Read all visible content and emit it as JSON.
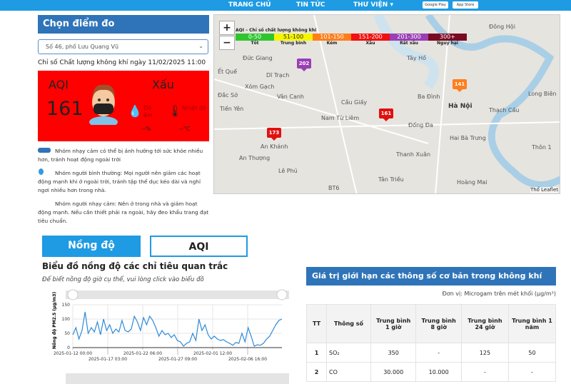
{
  "nav": {
    "items": [
      "TRANG CHỦ",
      "TIN TỨC",
      "THƯ VIỆN ▾"
    ],
    "stores": [
      "Google Play",
      "App Store"
    ]
  },
  "sidebar": {
    "title": "Chọn điểm đo",
    "station": "Số 46, phố Lưu Quang Vũ",
    "date_label": "Chỉ số Chất lượng không khí ngày 11/02/2025 11:00",
    "aqi_label": "AQI",
    "aqi_value": "161",
    "status": "Xấu",
    "humidity_label": "Độ ẩm",
    "humidity_value": "--%",
    "temp_label": "Nhiệt độ",
    "temp_value": "--°C",
    "box_color": "#ff0000",
    "advice": [
      "Nhóm nhạy cảm có thể bị ảnh hưởng tới sức khỏe nhiều hơn, tránh hoạt động ngoài trời",
      "Nhóm người bình thường: Mọi người nên giảm các hoạt động mạnh khi ở ngoài trời, tránh tập thể dục kéo dài và nghỉ ngơi nhiều hơn trong nhà.",
      "Nhóm người nhạy cảm: Nên ở trong nhà và giảm hoạt động mạnh. Nếu cần thiết phải ra ngoài, hãy đeo khẩu trang đạt tiêu chuẩn."
    ]
  },
  "map": {
    "zoom_in": "+",
    "zoom_out": "−",
    "legend_title": "AQI – Chỉ số chất lượng không khí",
    "legend": [
      {
        "range": "0-50",
        "label": "Tốt",
        "color": "#2fc52f"
      },
      {
        "range": "51-100",
        "label": "Trung bình",
        "color": "#f5f500"
      },
      {
        "range": "101-150",
        "label": "Kém",
        "color": "#ff7e1c"
      },
      {
        "range": "151-200",
        "label": "Xấu",
        "color": "#f21010"
      },
      {
        "range": "201-300",
        "label": "Rất xấu",
        "color": "#9a3fb5"
      },
      {
        "range": "300+",
        "label": "Nguy hại",
        "color": "#7a0a22"
      }
    ],
    "markers": [
      {
        "value": "202",
        "color": "#9a3fb5"
      },
      {
        "value": "141",
        "color": "#ff7e1c"
      },
      {
        "value": "161",
        "color": "#e01010"
      },
      {
        "value": "173",
        "color": "#e01010"
      }
    ],
    "places": [
      "Đông Hội",
      "Tây Hồ",
      "Đức Giang",
      "Dĩ Trạch",
      "Ết Quế",
      "Xóm Gạch",
      "Đắc Sở",
      "Vân Canh",
      "Tiền Yên",
      "Cầu Giấy",
      "Nam Từ Liêm",
      "Ba Đình",
      "Hà Nội",
      "Long Biên",
      "Thạch Cầu",
      "Đống Đa",
      "Hai Bà Trưng",
      "An Khánh",
      "An Thượng",
      "Thanh Xuân",
      "Thôn 1",
      "Lê Phú",
      "Tân Triều",
      "BT6",
      "Hoàng Mai"
    ],
    "attribution": "Thổ Leaflet"
  },
  "tabs": [
    "Nồng độ",
    "AQI"
  ],
  "chart_section": {
    "title": "Biểu đồ nồng độ các chỉ tiêu quan trắc",
    "subtitle": "Để biết nồng độ giờ cụ thể, vui lòng click vào biểu đồ"
  },
  "chart_data": {
    "type": "line",
    "ylabel": "Nồng độ PM2.5 (µg/m3)",
    "ylim": [
      0,
      150
    ],
    "yticks": [
      "0",
      "50",
      "100",
      "150"
    ],
    "xticks": [
      "2025-01-12 00:00",
      "2025-01-17 03:00",
      "2025-01-22 06:00",
      "2025-01-27 09:00",
      "2025-02-01 12:00",
      "2025-02-06 16:00"
    ],
    "xrange": [
      "2025-01-12 00:00",
      "2025-02-11 11:00"
    ],
    "grid": true,
    "color": "#2f8ad8",
    "values": [
      45,
      70,
      30,
      60,
      125,
      50,
      70,
      55,
      90,
      45,
      100,
      60,
      80,
      50,
      65,
      55,
      95,
      60,
      55,
      65,
      110,
      90,
      60,
      105,
      80,
      110,
      95,
      70,
      40,
      60,
      45,
      50,
      35,
      45,
      25,
      20,
      5,
      15,
      20,
      50,
      25,
      100,
      60,
      80,
      45,
      30,
      40,
      30,
      25,
      28,
      20,
      15,
      8,
      18,
      15,
      50,
      20,
      70,
      40,
      5,
      10,
      8,
      15,
      30,
      40,
      60,
      80,
      95,
      100
    ]
  },
  "limits": {
    "title": "Giá trị giới hạn các thông số cơ bản trong không khí",
    "unit": "Đơn vị: Microgam trên mét khối (µg/m³)",
    "headers": [
      "TT",
      "Thông số",
      "Trung bình 1 giờ",
      "Trung bình 8 giờ",
      "Trung bình 24 giờ",
      "Trung bình 1 năm"
    ],
    "rows": [
      [
        "1",
        "SO₂",
        "350",
        "-",
        "125",
        "50"
      ],
      [
        "2",
        "CO",
        "30.000",
        "10.000",
        "-",
        "-"
      ]
    ]
  }
}
